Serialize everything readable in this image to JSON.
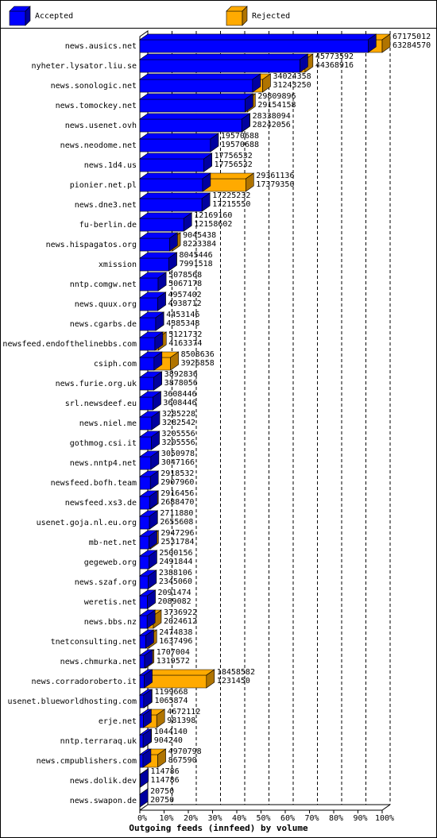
{
  "chart_data": {
    "type": "bar",
    "orientation": "horizontal",
    "three_d": true,
    "x_label": "Outgoing feeds (innfeed) by volume",
    "categories": [
      "news.ausics.net",
      "nyheter.lysator.liu.se",
      "news.sonologic.net",
      "news.tomockey.net",
      "news.usenet.ovh",
      "news.neodome.net",
      "news.1d4.us",
      "pionier.net.pl",
      "news.dne3.net",
      "fu-berlin.de",
      "news.hispagatos.org",
      "xmission",
      "nntp.comgw.net",
      "news.quux.org",
      "news.cgarbs.de",
      "newsfeed.endofthelinebbs.com",
      "csiph.com",
      "news.furie.org.uk",
      "srl.newsdeef.eu",
      "news.niel.me",
      "gothmog.csi.it",
      "news.nntp4.net",
      "newsfeed.bofh.team",
      "newsfeed.xs3.de",
      "usenet.goja.nl.eu.org",
      "mb-net.net",
      "gegeweb.org",
      "news.szaf.org",
      "weretis.net",
      "news.bbs.nz",
      "tnetconsulting.net",
      "news.chmurka.net",
      "news.corradoroberto.it",
      "usenet.blueworldhosting.com",
      "erje.net",
      "nntp.terraraq.uk",
      "news.cmpublishers.com",
      "news.dolik.dev",
      "news.swapon.de"
    ],
    "series": [
      {
        "name": "Rejected",
        "color": "#ffaa00",
        "side_color": "#b07400",
        "values": [
          67175012,
          45773592,
          34024358,
          29809896,
          28338094,
          19570688,
          17756532,
          29361136,
          17225232,
          12169160,
          9045438,
          8045446,
          5078568,
          4957402,
          4453146,
          5121732,
          8508636,
          3892836,
          3608446,
          3285228,
          3205556,
          3050978,
          2918532,
          2916456,
          2711880,
          2947296,
          2500156,
          2388106,
          2091474,
          3736922,
          2474838,
          1707004,
          18458582,
          1199668,
          4672112,
          1044140,
          4970798,
          114786,
          20750
        ]
      },
      {
        "name": "Accepted",
        "color": "#0000ff",
        "side_color": "#0000a0",
        "values": [
          63284570,
          44368916,
          31243250,
          29154158,
          28242056,
          19570688,
          17756532,
          17379350,
          17215550,
          12158602,
          8223384,
          7991518,
          5067178,
          4938712,
          4385348,
          4163374,
          3926858,
          3878056,
          3608446,
          3282542,
          3205556,
          3047166,
          2907960,
          2688470,
          2655608,
          2531784,
          2491844,
          2345060,
          2089082,
          2024612,
          1637496,
          1319572,
          1231450,
          1065874,
          981398,
          904240,
          867590,
          114786,
          20750
        ]
      }
    ],
    "legend_order": [
      1,
      0
    ],
    "xlim": [
      0,
      67175012
    ],
    "xticks": [
      {
        "value": 0,
        "label": "0%"
      },
      {
        "value": 6717501.2,
        "label": "10%"
      },
      {
        "value": 13435002.4,
        "label": "20%"
      },
      {
        "value": 20152503.6,
        "label": "30%"
      },
      {
        "value": 26870004.8,
        "label": "40%"
      },
      {
        "value": 33587506,
        "label": "50%"
      },
      {
        "value": 40305007.2,
        "label": "60%"
      },
      {
        "value": 47022508.4,
        "label": "70%"
      },
      {
        "value": 53740009.6,
        "label": "80%"
      },
      {
        "value": 60457510.8,
        "label": "90%"
      },
      {
        "value": 67175012,
        "label": "100%"
      }
    ],
    "grid": true
  }
}
